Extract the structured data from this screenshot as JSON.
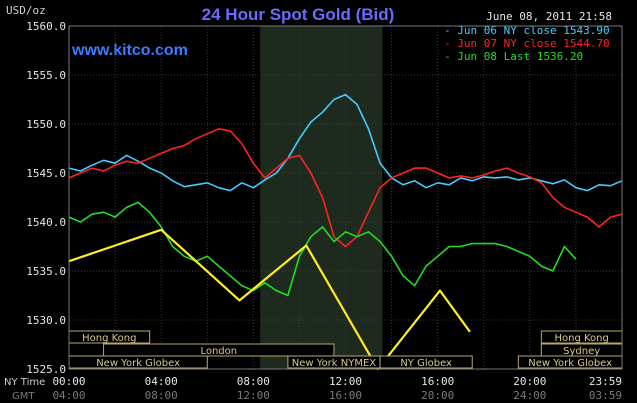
{
  "header": {
    "unit": "USD/oz",
    "title": "24 Hour Spot Gold (Bid)",
    "datetime": "June 08, 2011 21:58",
    "website": "www.kitco.com"
  },
  "legend": [
    {
      "text": "Jun 06 NY close 1543.90",
      "color": "#44ccff"
    },
    {
      "text": "Jun 07 NY close 1544.70",
      "color": "#ff2222"
    },
    {
      "text": "Jun 08 Last 1536.20",
      "color": "#22dd22"
    }
  ],
  "markets": [
    {
      "label": "Hong Kong",
      "start_hour": 0,
      "end_hour": 3.5,
      "row": 0
    },
    {
      "label": "Hong Kong",
      "start_hour": 20.5,
      "end_hour": 24,
      "row": 0
    },
    {
      "label": "London",
      "start_hour": 1.5,
      "end_hour": 11.5,
      "row": 1
    },
    {
      "label": "Sydney",
      "start_hour": 20.5,
      "end_hour": 24,
      "row": 1
    },
    {
      "label": "New York Globex",
      "start_hour": 0,
      "end_hour": 6.0,
      "row": 2
    },
    {
      "label": "New York NYMEX",
      "start_hour": 9.5,
      "end_hour": 13.5,
      "row": 2
    },
    {
      "label": "NY Globex",
      "start_hour": 13.5,
      "end_hour": 17.5,
      "row": 2
    },
    {
      "label": "New York Globex",
      "start_hour": 19.5,
      "end_hour": 24,
      "row": 2
    }
  ],
  "axis_labels": {
    "ny_time": "NY Time",
    "gmt": "GMT"
  },
  "chart_data": {
    "type": "line",
    "ylim": [
      1525.0,
      1560.0
    ],
    "xlim": [
      0,
      24
    ],
    "y_ticks": [
      "1525.0",
      "1530.0",
      "1535.0",
      "1540.0",
      "1545.0",
      "1550.0",
      "1555.0",
      "1560.0"
    ],
    "x_ticks_ny": [
      "00:00",
      "04:00",
      "08:00",
      "12:00",
      "16:00",
      "20:00",
      "23:59"
    ],
    "x_ticks_gmt": [
      "04:00",
      "08:00",
      "12:00",
      "16:00",
      "20:00",
      "24:00",
      "03:59"
    ],
    "shaded_region": [
      8.3,
      13.6
    ],
    "grid": true,
    "series": [
      {
        "name": "Jun 06 NY close 1543.90",
        "color": "#44ccff",
        "x": [
          0,
          0.5,
          1,
          1.5,
          2,
          2.5,
          3,
          3.5,
          4,
          4.5,
          5,
          5.5,
          6,
          6.5,
          7,
          7.5,
          8,
          8.5,
          9,
          9.5,
          10,
          10.5,
          11,
          11.5,
          12,
          12.5,
          13,
          13.5,
          14,
          14.5,
          15,
          15.5,
          16,
          16.5,
          17,
          17.5,
          18,
          18.5,
          19,
          19.5,
          20,
          20.5,
          21,
          21.5,
          22,
          22.5,
          23,
          23.5,
          24
        ],
        "y": [
          1545.5,
          1545.2,
          1545.8,
          1546.3,
          1546.0,
          1546.8,
          1546.2,
          1545.5,
          1545.0,
          1544.2,
          1543.6,
          1543.8,
          1544.0,
          1543.5,
          1543.2,
          1544.0,
          1543.5,
          1544.3,
          1545.0,
          1546.5,
          1548.5,
          1550.2,
          1551.2,
          1552.5,
          1553.0,
          1552.0,
          1549.5,
          1546.0,
          1544.5,
          1543.8,
          1544.2,
          1543.5,
          1544.0,
          1543.8,
          1544.5,
          1544.2,
          1544.6,
          1544.5,
          1544.6,
          1544.3,
          1544.5,
          1544.2,
          1543.9,
          1544.3,
          1543.5,
          1543.2,
          1543.8,
          1543.7,
          1544.2
        ]
      },
      {
        "name": "Jun 07 NY close 1544.70",
        "color": "#ff2222",
        "x": [
          0,
          0.5,
          1,
          1.5,
          2,
          2.5,
          3,
          3.5,
          4,
          4.5,
          5,
          5.5,
          6,
          6.5,
          7,
          7.5,
          8,
          8.5,
          9,
          9.5,
          10,
          10.5,
          11,
          11.5,
          12,
          12.5,
          13,
          13.5,
          14,
          14.5,
          15,
          15.5,
          16,
          16.5,
          17,
          17.5,
          18,
          18.5,
          19,
          19.5,
          20,
          20.5,
          21,
          21.5,
          22,
          22.5,
          23,
          23.5,
          24
        ],
        "y": [
          1544.5,
          1545.0,
          1545.5,
          1545.2,
          1545.8,
          1546.2,
          1546.0,
          1546.5,
          1547.0,
          1547.5,
          1547.8,
          1548.5,
          1549.0,
          1549.5,
          1549.3,
          1548.0,
          1546.0,
          1544.5,
          1545.5,
          1546.5,
          1546.8,
          1545.0,
          1542.5,
          1538.5,
          1537.5,
          1538.5,
          1541.0,
          1543.5,
          1544.5,
          1545.0,
          1545.5,
          1545.5,
          1545.0,
          1544.5,
          1544.7,
          1544.5,
          1544.8,
          1545.2,
          1545.5,
          1545.0,
          1544.6,
          1544.0,
          1542.5,
          1541.5,
          1541.0,
          1540.5,
          1539.5,
          1540.5,
          1540.8
        ]
      },
      {
        "name": "Jun 08 Last 1536.20",
        "color": "#22dd22",
        "x": [
          0,
          0.5,
          1,
          1.5,
          2,
          2.5,
          3,
          3.5,
          4,
          4.5,
          5,
          5.5,
          6,
          6.5,
          7,
          7.5,
          8,
          8.5,
          9,
          9.5,
          10,
          10.5,
          11,
          11.5,
          12,
          12.5,
          13,
          13.5,
          14,
          14.5,
          15,
          15.5,
          16,
          16.5,
          17,
          17.5,
          18,
          18.5,
          19,
          19.5,
          20,
          20.5,
          21,
          21.5,
          22
        ],
        "y": [
          1540.5,
          1540.0,
          1540.8,
          1541.0,
          1540.5,
          1541.5,
          1542.0,
          1541.0,
          1539.5,
          1537.5,
          1536.5,
          1536.0,
          1536.5,
          1535.5,
          1534.5,
          1533.5,
          1533.0,
          1533.8,
          1533.0,
          1532.5,
          1536.5,
          1538.5,
          1539.5,
          1538.0,
          1539.0,
          1538.5,
          1539.0,
          1538.0,
          1536.5,
          1534.5,
          1533.5,
          1535.5,
          1536.5,
          1537.5,
          1537.5,
          1537.8,
          1537.8,
          1537.8,
          1537.5,
          1537.0,
          1536.5,
          1535.5,
          1535.0,
          1537.5,
          1536.2
        ]
      },
      {
        "name": "",
        "color": "#ffee22",
        "x": [
          0,
          4.0,
          7.4,
          10.3,
          13.4,
          16.1,
          17.4
        ],
        "y": [
          1536.0,
          1539.2,
          1532.0,
          1537.6,
          1525.0,
          1533.0,
          1528.8
        ]
      }
    ]
  }
}
